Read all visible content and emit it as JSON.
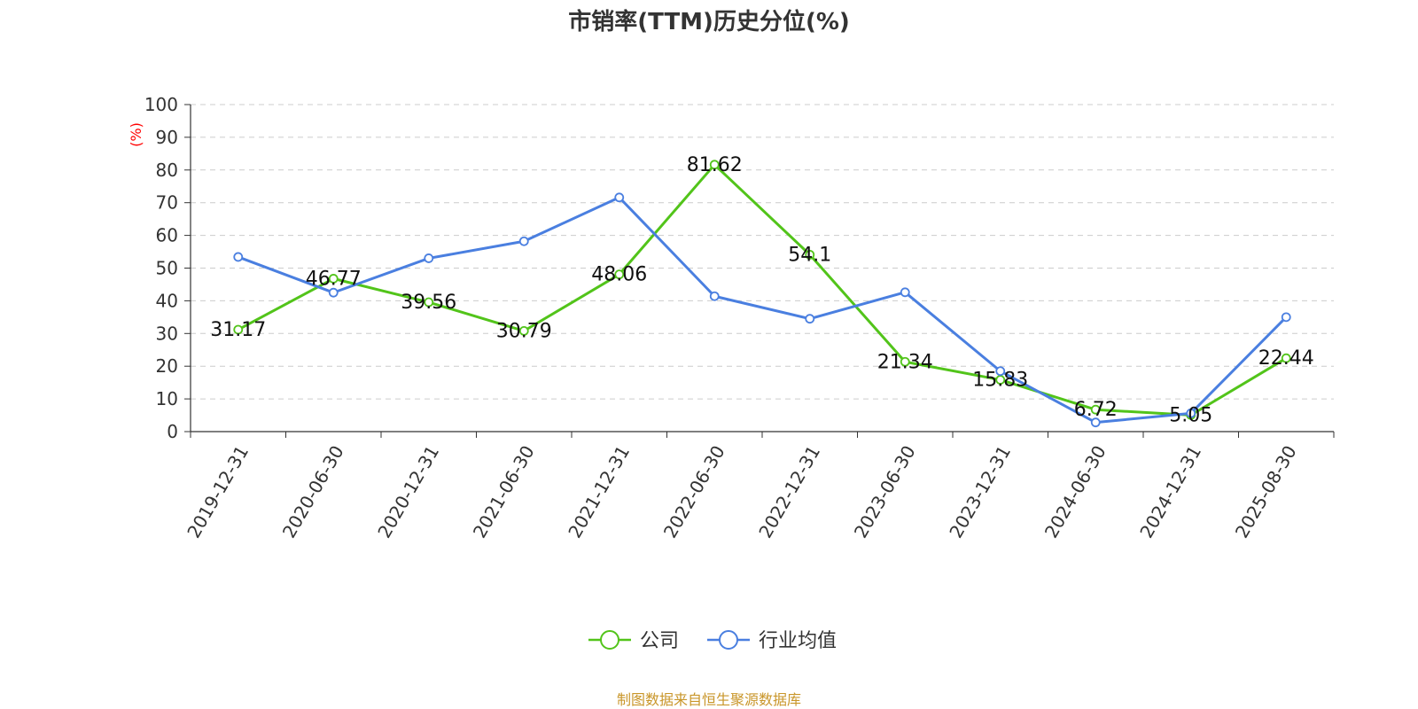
{
  "chart_data": {
    "type": "line",
    "title": "市销率(TTM)历史分位(%)",
    "ylabel": "(%)",
    "ylim": [
      0,
      100
    ],
    "yticks": [
      0,
      10,
      20,
      30,
      40,
      50,
      60,
      70,
      80,
      90,
      100
    ],
    "categories": [
      "2019-12-31",
      "2020-06-30",
      "2020-12-31",
      "2021-06-30",
      "2021-12-31",
      "2022-06-30",
      "2022-12-31",
      "2023-06-30",
      "2023-12-31",
      "2024-06-30",
      "2024-12-31",
      "2025-08-30"
    ],
    "series": [
      {
        "name": "公司",
        "color": "#52c41a",
        "values": [
          31.17,
          46.77,
          39.56,
          30.79,
          48.06,
          81.62,
          54.1,
          21.34,
          15.83,
          6.72,
          5.05,
          22.44
        ],
        "labels": [
          "31.17",
          "46.77",
          "39.56",
          "30.79",
          "48.06",
          "81.62",
          "54.1",
          "21.34",
          "15.83",
          "6.72",
          "5.05",
          "22.44"
        ]
      },
      {
        "name": "行业均值",
        "color": "#4a7fe0",
        "values": [
          53.4,
          42.5,
          53.0,
          58.2,
          71.6,
          41.4,
          34.5,
          42.6,
          18.5,
          2.8,
          5.6,
          35.0
        ]
      }
    ],
    "grid": true,
    "legend_position": "bottom-center",
    "source": "制图数据来自恒生聚源数据库",
    "colors": {
      "axis": "#333333",
      "grid": "#cccccc",
      "ylabel": "#ff0000",
      "source": "#c9962a"
    }
  }
}
